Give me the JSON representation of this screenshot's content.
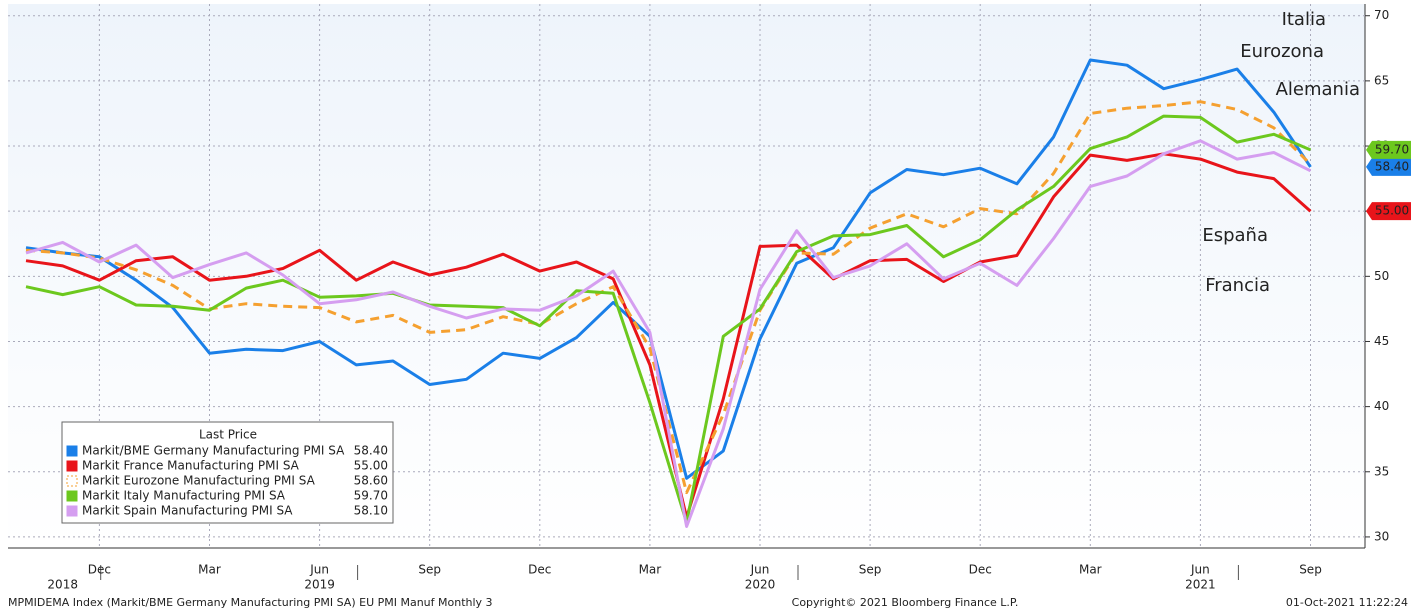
{
  "chart_data": {
    "type": "line",
    "categories": [
      null,
      null,
      "Dec",
      null,
      null,
      "Mar",
      null,
      null,
      "Jun",
      null,
      null,
      "Sep",
      null,
      null,
      "Dec",
      null,
      null,
      "Mar",
      null,
      null,
      "Jun",
      null,
      null,
      "Sep",
      null,
      null,
      "Dec",
      null,
      null,
      "Mar",
      null,
      null,
      "Jun",
      null,
      null,
      "Sep"
    ],
    "year_categories": [
      null,
      "2018",
      null,
      null,
      null,
      null,
      null,
      null,
      "2019",
      null,
      null,
      null,
      null,
      null,
      null,
      null,
      null,
      null,
      null,
      null,
      "2020",
      null,
      null,
      null,
      null,
      null,
      null,
      null,
      null,
      null,
      null,
      null,
      "2021",
      null,
      null,
      null
    ],
    "ylim": [
      29.15,
      70.9
    ],
    "yticks": [
      30,
      35,
      40,
      45,
      50,
      55,
      60,
      65,
      70
    ],
    "grid": true,
    "legend_title": "Last Price",
    "series": [
      {
        "name": "Markit/BME Germany Manufacturing PMI SA",
        "color": "#1a7fe8",
        "annotation": "Alemania",
        "last_price": "58.40",
        "axis_tag": "58.40",
        "values": [
          52.2,
          51.8,
          51.5,
          49.7,
          47.6,
          44.1,
          44.4,
          44.3,
          45.0,
          43.2,
          43.5,
          41.7,
          42.1,
          44.1,
          43.7,
          45.3,
          48.0,
          45.4,
          34.5,
          36.6,
          45.2,
          51.0,
          52.2,
          56.4,
          58.2,
          57.8,
          58.3,
          57.1,
          60.7,
          66.6,
          66.2,
          64.4,
          65.1,
          65.9,
          62.6,
          58.4
        ]
      },
      {
        "name": "Markit France Manufacturing PMI SA",
        "color": "#e8141a",
        "annotation": "Francia",
        "last_price": "55.00",
        "axis_tag": "55.00",
        "values": [
          51.2,
          50.8,
          49.7,
          51.2,
          51.5,
          49.7,
          50.0,
          50.6,
          52.0,
          49.7,
          51.1,
          50.1,
          50.7,
          51.7,
          50.4,
          51.1,
          49.8,
          43.2,
          31.5,
          40.6,
          52.3,
          52.4,
          49.8,
          51.2,
          51.3,
          49.6,
          51.1,
          51.6,
          56.1,
          59.3,
          58.9,
          59.4,
          59.0,
          58.0,
          57.5,
          55.0
        ]
      },
      {
        "name": "Markit Eurozone Manufacturing PMI SA",
        "color": "#f5a030",
        "dash": true,
        "annotation": "Eurozona",
        "last_price": "58.60",
        "values": [
          52.0,
          51.8,
          51.4,
          50.5,
          49.3,
          47.5,
          47.9,
          47.7,
          47.6,
          46.5,
          47.0,
          45.7,
          45.9,
          46.9,
          46.3,
          47.9,
          49.2,
          44.5,
          33.4,
          39.4,
          47.4,
          51.8,
          51.7,
          53.7,
          54.8,
          53.8,
          55.2,
          54.8,
          57.9,
          62.5,
          62.9,
          63.1,
          63.4,
          62.8,
          61.4,
          58.6
        ]
      },
      {
        "name": "Markit Italy Manufacturing PMI  SA",
        "color": "#6cc81e",
        "annotation": "Italia",
        "last_price": "59.70",
        "axis_tag": "59.70",
        "values": [
          49.2,
          48.6,
          49.2,
          47.8,
          47.7,
          47.4,
          49.1,
          49.7,
          48.4,
          48.5,
          48.7,
          47.8,
          47.7,
          47.6,
          46.2,
          48.9,
          48.7,
          40.3,
          31.1,
          45.4,
          47.5,
          51.9,
          53.1,
          53.2,
          53.9,
          51.5,
          52.8,
          55.1,
          56.9,
          59.8,
          60.7,
          62.3,
          62.2,
          60.3,
          60.9,
          59.7
        ]
      },
      {
        "name": "Markit Spain Manufacturing PMI SA",
        "color": "#d59ef0",
        "annotation": "España",
        "last_price": "58.10",
        "values": [
          51.8,
          52.6,
          51.1,
          52.4,
          49.9,
          50.9,
          51.8,
          50.1,
          47.9,
          48.2,
          48.8,
          47.7,
          46.8,
          47.5,
          47.4,
          48.5,
          50.4,
          45.7,
          30.8,
          38.3,
          49.0,
          53.5,
          49.9,
          50.8,
          52.5,
          49.8,
          51.0,
          49.3,
          52.9,
          56.9,
          57.7,
          59.4,
          60.4,
          59.0,
          59.5,
          58.1
        ]
      }
    ],
    "footer_left": "MPMIDEMA Index (Markit/BME Germany Manufacturing PMI SA) EU PMI Manuf  Monthly 3",
    "footer_center": "Copyright© 2021 Bloomberg Finance L.P.",
    "footer_right": "01-Oct-2021 11:22:24"
  }
}
